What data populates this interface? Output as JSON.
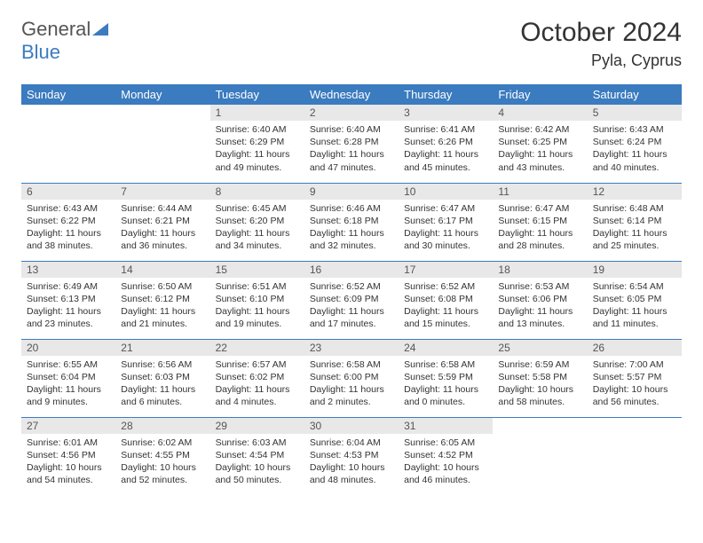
{
  "logo": {
    "text1": "General",
    "text2": "Blue"
  },
  "title": "October 2024",
  "location": "Pyla, Cyprus",
  "colors": {
    "header_bg": "#3b7bbf",
    "header_fg": "#ffffff",
    "daynum_bg": "#e8e8e8",
    "row_border": "#3b7bbf",
    "text": "#333333"
  },
  "weekdays": [
    "Sunday",
    "Monday",
    "Tuesday",
    "Wednesday",
    "Thursday",
    "Friday",
    "Saturday"
  ],
  "weeks": [
    [
      {
        "n": "",
        "sr": "",
        "ss": "",
        "dl": ""
      },
      {
        "n": "",
        "sr": "",
        "ss": "",
        "dl": ""
      },
      {
        "n": "1",
        "sr": "Sunrise: 6:40 AM",
        "ss": "Sunset: 6:29 PM",
        "dl": "Daylight: 11 hours and 49 minutes."
      },
      {
        "n": "2",
        "sr": "Sunrise: 6:40 AM",
        "ss": "Sunset: 6:28 PM",
        "dl": "Daylight: 11 hours and 47 minutes."
      },
      {
        "n": "3",
        "sr": "Sunrise: 6:41 AM",
        "ss": "Sunset: 6:26 PM",
        "dl": "Daylight: 11 hours and 45 minutes."
      },
      {
        "n": "4",
        "sr": "Sunrise: 6:42 AM",
        "ss": "Sunset: 6:25 PM",
        "dl": "Daylight: 11 hours and 43 minutes."
      },
      {
        "n": "5",
        "sr": "Sunrise: 6:43 AM",
        "ss": "Sunset: 6:24 PM",
        "dl": "Daylight: 11 hours and 40 minutes."
      }
    ],
    [
      {
        "n": "6",
        "sr": "Sunrise: 6:43 AM",
        "ss": "Sunset: 6:22 PM",
        "dl": "Daylight: 11 hours and 38 minutes."
      },
      {
        "n": "7",
        "sr": "Sunrise: 6:44 AM",
        "ss": "Sunset: 6:21 PM",
        "dl": "Daylight: 11 hours and 36 minutes."
      },
      {
        "n": "8",
        "sr": "Sunrise: 6:45 AM",
        "ss": "Sunset: 6:20 PM",
        "dl": "Daylight: 11 hours and 34 minutes."
      },
      {
        "n": "9",
        "sr": "Sunrise: 6:46 AM",
        "ss": "Sunset: 6:18 PM",
        "dl": "Daylight: 11 hours and 32 minutes."
      },
      {
        "n": "10",
        "sr": "Sunrise: 6:47 AM",
        "ss": "Sunset: 6:17 PM",
        "dl": "Daylight: 11 hours and 30 minutes."
      },
      {
        "n": "11",
        "sr": "Sunrise: 6:47 AM",
        "ss": "Sunset: 6:15 PM",
        "dl": "Daylight: 11 hours and 28 minutes."
      },
      {
        "n": "12",
        "sr": "Sunrise: 6:48 AM",
        "ss": "Sunset: 6:14 PM",
        "dl": "Daylight: 11 hours and 25 minutes."
      }
    ],
    [
      {
        "n": "13",
        "sr": "Sunrise: 6:49 AM",
        "ss": "Sunset: 6:13 PM",
        "dl": "Daylight: 11 hours and 23 minutes."
      },
      {
        "n": "14",
        "sr": "Sunrise: 6:50 AM",
        "ss": "Sunset: 6:12 PM",
        "dl": "Daylight: 11 hours and 21 minutes."
      },
      {
        "n": "15",
        "sr": "Sunrise: 6:51 AM",
        "ss": "Sunset: 6:10 PM",
        "dl": "Daylight: 11 hours and 19 minutes."
      },
      {
        "n": "16",
        "sr": "Sunrise: 6:52 AM",
        "ss": "Sunset: 6:09 PM",
        "dl": "Daylight: 11 hours and 17 minutes."
      },
      {
        "n": "17",
        "sr": "Sunrise: 6:52 AM",
        "ss": "Sunset: 6:08 PM",
        "dl": "Daylight: 11 hours and 15 minutes."
      },
      {
        "n": "18",
        "sr": "Sunrise: 6:53 AM",
        "ss": "Sunset: 6:06 PM",
        "dl": "Daylight: 11 hours and 13 minutes."
      },
      {
        "n": "19",
        "sr": "Sunrise: 6:54 AM",
        "ss": "Sunset: 6:05 PM",
        "dl": "Daylight: 11 hours and 11 minutes."
      }
    ],
    [
      {
        "n": "20",
        "sr": "Sunrise: 6:55 AM",
        "ss": "Sunset: 6:04 PM",
        "dl": "Daylight: 11 hours and 9 minutes."
      },
      {
        "n": "21",
        "sr": "Sunrise: 6:56 AM",
        "ss": "Sunset: 6:03 PM",
        "dl": "Daylight: 11 hours and 6 minutes."
      },
      {
        "n": "22",
        "sr": "Sunrise: 6:57 AM",
        "ss": "Sunset: 6:02 PM",
        "dl": "Daylight: 11 hours and 4 minutes."
      },
      {
        "n": "23",
        "sr": "Sunrise: 6:58 AM",
        "ss": "Sunset: 6:00 PM",
        "dl": "Daylight: 11 hours and 2 minutes."
      },
      {
        "n": "24",
        "sr": "Sunrise: 6:58 AM",
        "ss": "Sunset: 5:59 PM",
        "dl": "Daylight: 11 hours and 0 minutes."
      },
      {
        "n": "25",
        "sr": "Sunrise: 6:59 AM",
        "ss": "Sunset: 5:58 PM",
        "dl": "Daylight: 10 hours and 58 minutes."
      },
      {
        "n": "26",
        "sr": "Sunrise: 7:00 AM",
        "ss": "Sunset: 5:57 PM",
        "dl": "Daylight: 10 hours and 56 minutes."
      }
    ],
    [
      {
        "n": "27",
        "sr": "Sunrise: 6:01 AM",
        "ss": "Sunset: 4:56 PM",
        "dl": "Daylight: 10 hours and 54 minutes."
      },
      {
        "n": "28",
        "sr": "Sunrise: 6:02 AM",
        "ss": "Sunset: 4:55 PM",
        "dl": "Daylight: 10 hours and 52 minutes."
      },
      {
        "n": "29",
        "sr": "Sunrise: 6:03 AM",
        "ss": "Sunset: 4:54 PM",
        "dl": "Daylight: 10 hours and 50 minutes."
      },
      {
        "n": "30",
        "sr": "Sunrise: 6:04 AM",
        "ss": "Sunset: 4:53 PM",
        "dl": "Daylight: 10 hours and 48 minutes."
      },
      {
        "n": "31",
        "sr": "Sunrise: 6:05 AM",
        "ss": "Sunset: 4:52 PM",
        "dl": "Daylight: 10 hours and 46 minutes."
      },
      {
        "n": "",
        "sr": "",
        "ss": "",
        "dl": ""
      },
      {
        "n": "",
        "sr": "",
        "ss": "",
        "dl": ""
      }
    ]
  ]
}
